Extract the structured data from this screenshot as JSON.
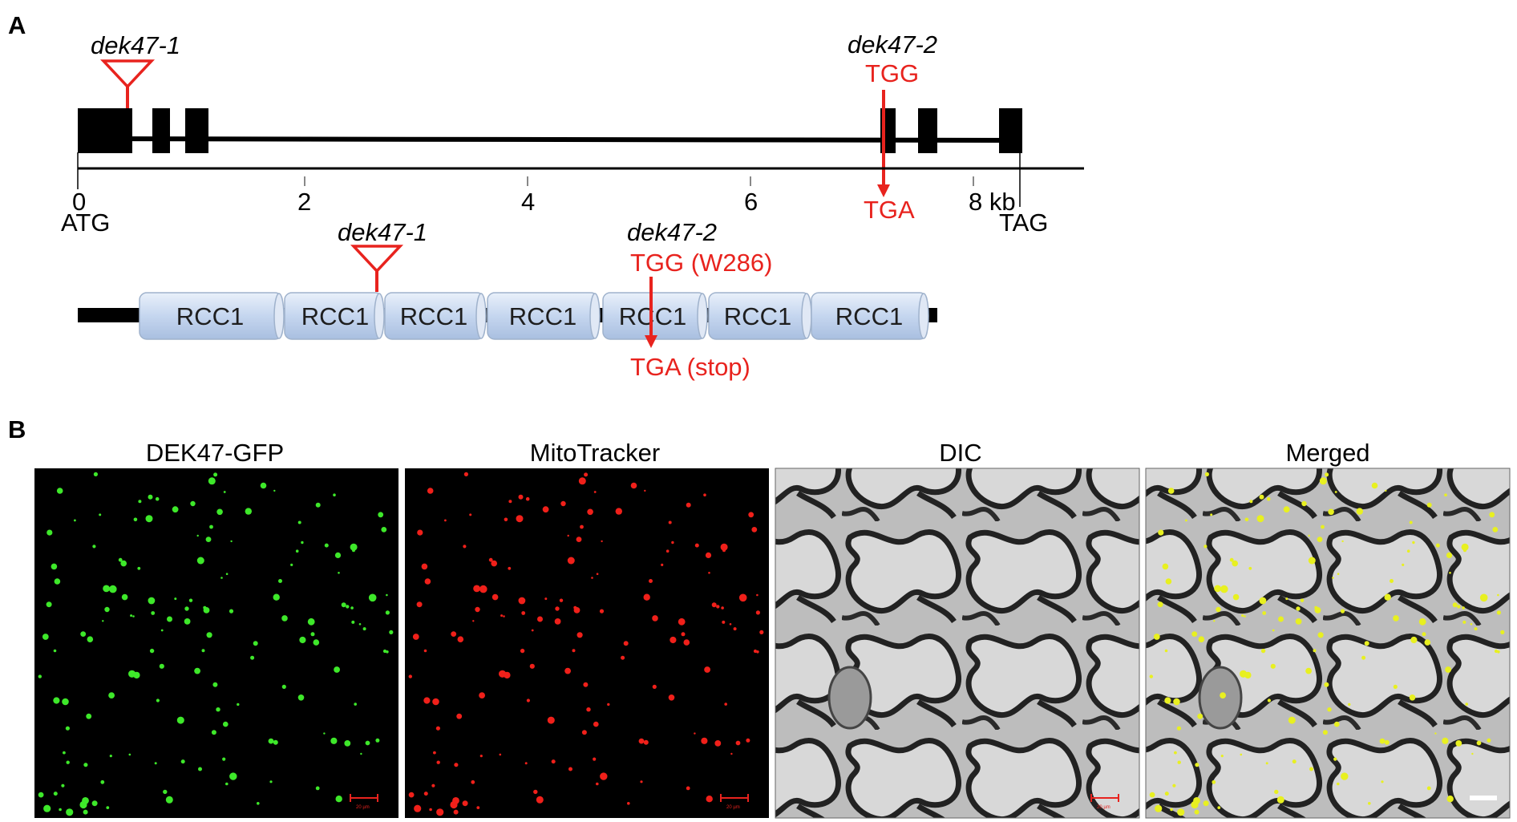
{
  "panel_a": {
    "letter": "A",
    "gene": {
      "mutant1_label": "dek47-1",
      "mutant2_label": "dek47-2",
      "codon_before": "TGG",
      "codon_after": "TGA",
      "start_codon": "ATG",
      "stop_codon": "TAG",
      "axis_ticks": [
        "0",
        "2",
        "4",
        "6",
        "8 kb"
      ]
    },
    "protein": {
      "mutant1_label": "dek47-1",
      "mutant2_label": "dek47-2",
      "codon_before": "TGG (W286)",
      "codon_after": "TGA (stop)",
      "domains": [
        "RCC1",
        "RCC1",
        "RCC1",
        "RCC1",
        "RCC1",
        "RCC1",
        "RCC1"
      ]
    }
  },
  "panel_b": {
    "letter": "B",
    "images": [
      {
        "title": "DEK47-GFP",
        "scale_label": "20 µm"
      },
      {
        "title": "MitoTracker",
        "scale_label": "20 µm"
      },
      {
        "title": "DIC",
        "scale_label": "20 µm"
      },
      {
        "title": "Merged",
        "scale_label": ""
      }
    ]
  },
  "colors": {
    "mutation_red": "#e8231e",
    "domain_fill": "#c6d6ee",
    "gfp_green": "#3ee82a",
    "mito_red": "#f0201a",
    "merge_yellow": "#e8f020"
  }
}
